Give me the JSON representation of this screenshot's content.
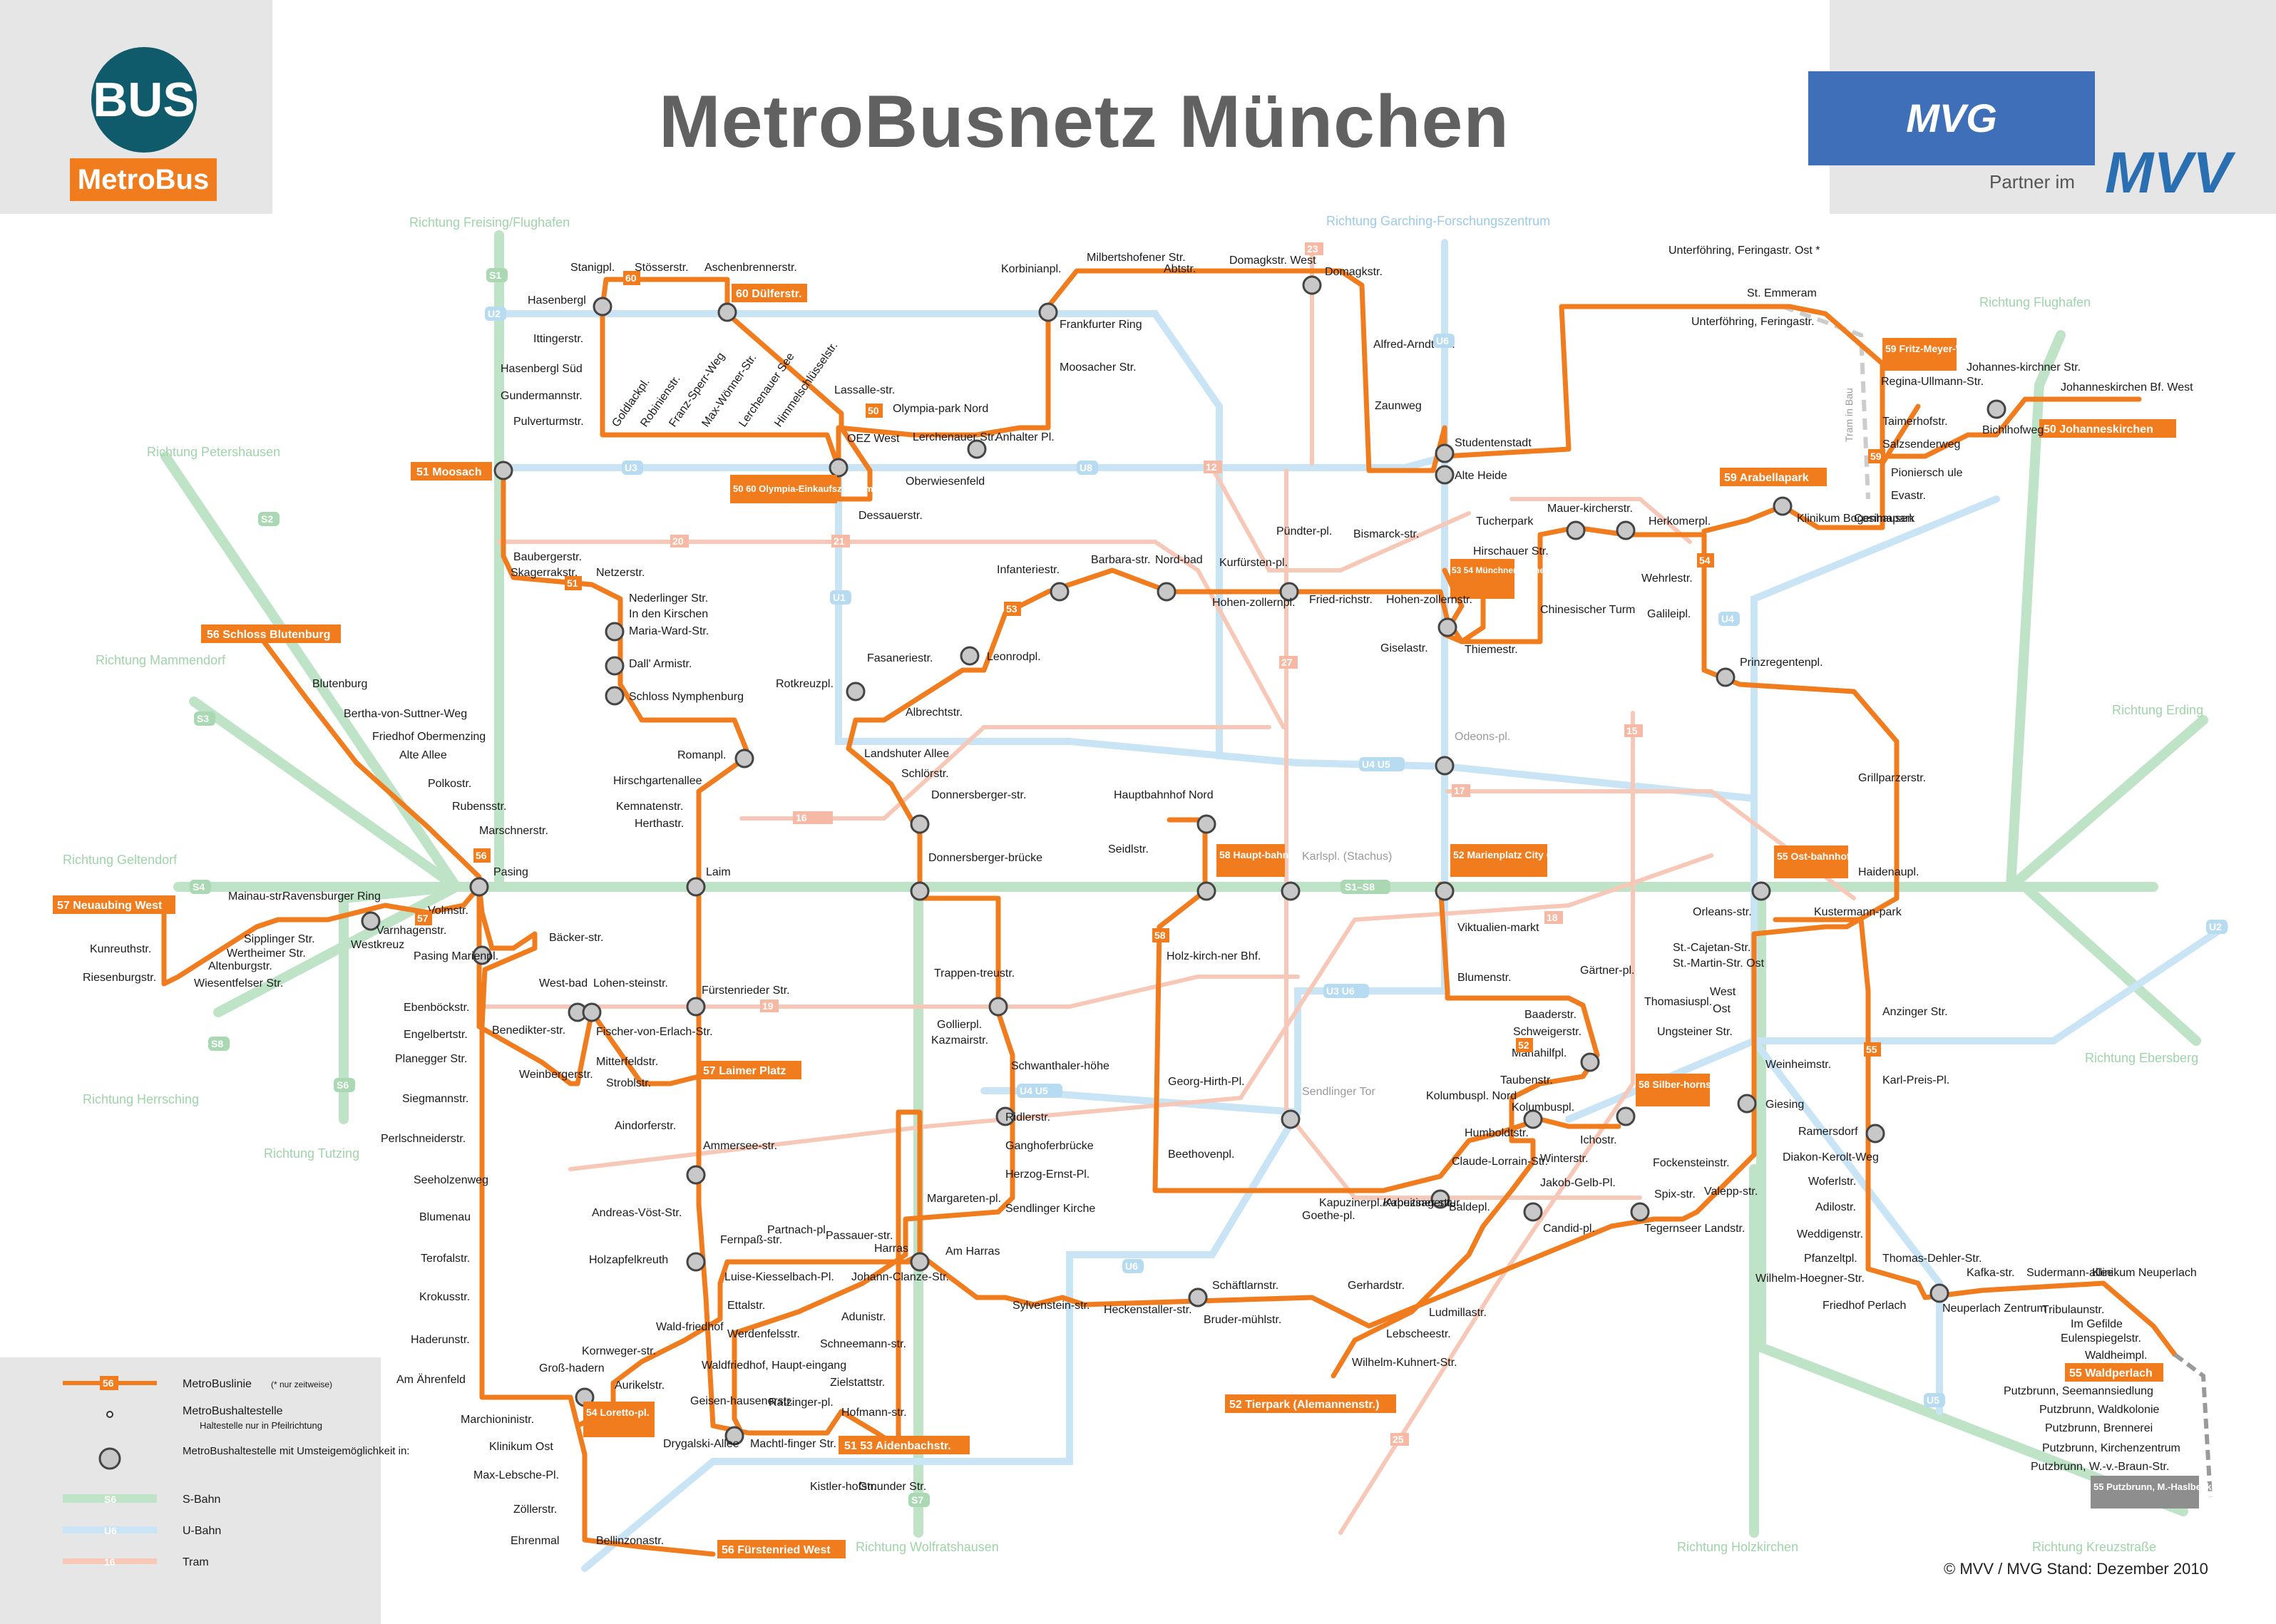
{
  "header": {
    "title": "MetroBusnetz München",
    "logo_bus": "BUS",
    "logo_metrobus": "MetroBus",
    "mvg": "MVG",
    "partner": "Partner im",
    "mvv": "MVV"
  },
  "colors": {
    "metrobus": "#f07c1e",
    "sbahn": "#bfe3c6",
    "ubahn": "#c9e4f5",
    "tram": "#f7c8b8",
    "bus_logo": "#0f5a6b",
    "mvg_blue": "#3f6fb8"
  },
  "directions": [
    "Richtung Freising/Flughafen",
    "Richtung Garching-Forschungszentrum",
    "Richtung Flughafen",
    "Richtung Petershausen",
    "Richtung Mammendorf",
    "Richtung Geltendorf",
    "Richtung Herrsching",
    "Richtung Tutzing",
    "Richtung Wolfratshausen",
    "Richtung Holzkirchen",
    "Richtung Kreuzstraße",
    "Richtung Ebersberg",
    "Richtung Erding"
  ],
  "terminus_labels": [
    "51 Moosach",
    "50 60 Olympia-Einkaufszentrum",
    "60 Dülferstr.",
    "56 Schloss Blutenburg",
    "57 Neuaubing West",
    "57 Laimer Platz",
    "54 Loretto-pl.",
    "56 Fürstenried West",
    "51 53 Aidenbachstr.",
    "52 Tierpark (Alemannenstr.)",
    "58 Haupt-bahnhof",
    "52 Marienplatz City Center",
    "53 54 Münchner Freiheit",
    "59 Arabellapark",
    "59 Fritz-Meyer-Weg",
    "50 Johanneskirchen",
    "55 Ost-bahnhof",
    "58 Silber-hornstr.",
    "55 Waldperlach",
    "55 Putzbrunn, M.-Haslbeck-Str."
  ],
  "stops": [
    "Hasenbergl",
    "Stanigpl.",
    "Stösserstr.",
    "Aschenbrennerstr.",
    "Ittingerstr.",
    "Hasenbergl Süd",
    "Gundermannstr.",
    "Pulverturmstr.",
    "Goldlackpl.",
    "Robinienstr.",
    "Franz-Sperr-Weg",
    "Max-Wönner-Str.",
    "Lerchenauer See",
    "Himmelschlüsselstr.",
    "Lassalle-str.",
    "Olympia-park Nord",
    "OEZ West",
    "Dessauerstr.",
    "Oberwiesenfeld",
    "Lerchenauer Str.",
    "Anhalter Pl.",
    "Korbinianpl.",
    "Milbertshofener Str.",
    "Abtstr.",
    "Domagkstr. West",
    "Domagkstr.",
    "Frankfurter Ring",
    "Moosacher Str.",
    "Alfred-Arndt-Str.",
    "Zaunweg",
    "Studentenstadt",
    "Alte Heide",
    "Unterföhring, Feringastr. Ost *",
    "Unterföhring, Feringastr.",
    "St. Emmeram",
    "Regina-Ullmann-Str.",
    "Taimerhofstr.",
    "Salzsenderweg",
    "Pioniersch ule",
    "Evastr.",
    "Cosimapark",
    "Johannes-kirchner Str.",
    "Bichlhofweg",
    "Johanneskirchen Bf. West",
    "Klinikum Bogenhausen",
    "Baubergerstr.",
    "Skagerrakstr.",
    "Netzerstr.",
    "Nederlinger Str.",
    "In den Kirschen",
    "Maria-Ward-Str.",
    "Dall' Armistr.",
    "Schloss Nymphenburg",
    "Romanpl.",
    "Hirschgartenallee",
    "Kemnatenstr.",
    "Herthastr.",
    "Laim",
    "Blutenburg",
    "Bertha-von-Suttner-Weg",
    "Friedhof Obermenzing",
    "Alte Allee",
    "Polkostr.",
    "Rubensstr.",
    "Marschnerstr.",
    "Pasing",
    "Mainau-str.",
    "Ravensburger Ring",
    "Volmstr.",
    "Varnhagenstr.",
    "Westkreuz",
    "Sipplinger Str.",
    "Wertheimer Str.",
    "Altenburgstr.",
    "Wiesentfelser Str.",
    "Kunreuthstr.",
    "Riesenburgstr.",
    "Pasing Marienpl.",
    "Bäcker-str.",
    "Ebenböckstr.",
    "Engelbertstr.",
    "Planegger Str.",
    "Siegmannstr.",
    "Perlschneiderstr.",
    "Seeholzenweg",
    "Blumenau",
    "Terofalstr.",
    "Krokusstr.",
    "Haderunstr.",
    "Am Ährenfeld",
    "Groß-hadern",
    "Marchioninistr.",
    "Klinikum Ost",
    "Max-Lebsche-Pl.",
    "Zöllerstr.",
    "Ehrenmal",
    "Bellinzonastr.",
    "West-bad",
    "Lohen-steinstr.",
    "Benedikter-str.",
    "Fischer-von-Erlach-Str.",
    "Mitterfeldstr.",
    "Weinbergerstr.",
    "Stroblstr.",
    "Aindorferstr.",
    "Ammersee-str.",
    "Andreas-Vöst-Str.",
    "Holzapfelkreuth",
    "Fernpaß-str.",
    "Partnach-pl.",
    "Passauer-str.",
    "Harras",
    "Am Harras",
    "Luise-Kiesselbach-Pl.",
    "Ettalstr.",
    "Werdenfelsstr.",
    "Johann-Clanze-Str.",
    "Adunistr.",
    "Wald-friedhof",
    "Kornweger-str.",
    "Aurikelstr.",
    "Waldfriedhof, Haupt-eingang",
    "Schneemann-str.",
    "Zielstattstr.",
    "Geisen-hausenerstr.",
    "Ratzinger-pl.",
    "Hofmann-str.",
    "Drygalski-Allee",
    "Machtl-finger Str.",
    "Kistler-hofstr.",
    "Gmunder Str.",
    "Fürstenrieder Str.",
    "Rotkreuzpl.",
    "Fasaneriestr.",
    "Albrechtstr.",
    "Leonrodpl.",
    "Infanteriestr.",
    "Barbara-str.",
    "Nord-bad",
    "Hohen-zollernpl.",
    "Kurfürsten-pl.",
    "Pündter-pl.",
    "Bismarck-str.",
    "Fried-richstr.",
    "Hohen-zollernstr.",
    "Giselastr.",
    "Hirschauer Str.",
    "Chinesischer Turm",
    "Thiemestr.",
    "Tucherpark",
    "Mauer-kircherstr.",
    "Herkomerpl.",
    "Wehrlestr.",
    "Galileipl.",
    "Prinzregentenpl.",
    "Landshuter Allee",
    "Schlörstr.",
    "Donnersberger-str.",
    "Donnersberger-brücke",
    "Hauptbahnhof Nord",
    "Seidlstr.",
    "Karlspl. (Stachus)",
    "Odeons-pl.",
    "Holz-kirch-ner Bhf.",
    "Georg-Hirth-Pl.",
    "Beethovenpl.",
    "Trappen-treustr.",
    "Gollierpl.",
    "Kazmairstr.",
    "Schwanthaler-höhe",
    "Ridlerstr.",
    "Ganghoferbrücke",
    "Herzog-Ernst-Pl.",
    "Sendlinger Kirche",
    "Margareten-pl.",
    "Sylvenstein-str.",
    "Heckenstaller-str.",
    "Schäftlarnstr.",
    "Bruder-mühlstr.",
    "Gerhardstr.",
    "Ludmillastr.",
    "Lebscheestr.",
    "Wilhelm-Kuhnert-Str.",
    "Kapuzinerpl./Arbeitsagentur",
    "Kapuziner-str.",
    "Goethe-pl.",
    "Sendlinger Tor",
    "Viktualien-markt",
    "Blumenstr.",
    "Gärtner-pl.",
    "Baaderstr.",
    "Schweigerstr.",
    "Mariahilfpl.",
    "Taubenstr.",
    "Kolumbuspl. Nord",
    "Kolumbuspl.",
    "Humboldtstr.",
    "Claude-Lorrain-Str.",
    "Baldepl.",
    "Ichostr.",
    "Winterstr.",
    "Jakob-Gelb-Pl.",
    "Candid-pl.",
    "Tegernseer Landstr.",
    "Spix-str.",
    "Valepp-str.",
    "Fockensteinstr.",
    "Orleans-str.",
    "St.-Cajetan-Str.",
    "St.-Martin-Str. Ost",
    "West",
    "Ost",
    "Thomasiuspl.",
    "Ungsteiner Str.",
    "Weinheimstr.",
    "Giesing",
    "Kustermann-park",
    "Anzinger Str.",
    "Karl-Preis-Pl.",
    "Ramersdorf",
    "Diakon-Kerolt-Weg",
    "Woferlstr.",
    "Adilostr.",
    "Weddigenstr.",
    "Pfanzeltpl.",
    "Wilhelm-Hoegner-Str.",
    "Friedhof Perlach",
    "Thomas-Dehler-Str.",
    "Neuperlach Zentrum",
    "Kafka-str.",
    "Sudermann-allee",
    "Klinikum Neuperlach",
    "Tribulaunstr.",
    "Im Gefilde",
    "Eulenspiegelstr.",
    "Waldheimpl.",
    "Putzbrunn, Seemannsiedlung",
    "Putzbrunn, Waldkolonie",
    "Putzbrunn, Brennerei",
    "Putzbrunn, Kirchenzentrum",
    "Putzbrunn, W.-v.-Braun-Str.",
    "Grillparzerstr.",
    "Haidenaupl."
  ],
  "line_numbers": [
    "50",
    "51",
    "52",
    "53",
    "54",
    "55",
    "56",
    "57",
    "58",
    "59",
    "60"
  ],
  "rail_labels": {
    "sbahn": [
      "S1",
      "S2",
      "S3",
      "S4",
      "S6",
      "S7",
      "S8",
      "S1–S8"
    ],
    "ubahn": [
      "U1",
      "U2",
      "U3",
      "U4",
      "U5",
      "U6",
      "U7",
      "U8",
      "U4 U5",
      "U3 U6"
    ],
    "tram": [
      "12",
      "15",
      "16",
      "17",
      "18",
      "19",
      "20",
      "21",
      "23",
      "25",
      "27"
    ]
  },
  "tram_in_bau": "Tram in Bau",
  "legend": {
    "line_sample": "56",
    "metrobus_line": "MetroBuslinie",
    "metrobus_line_note": "(* nur zeitweise)",
    "stop": "MetroBushaltestelle",
    "stop_note": "Haltestelle nur in Pfeilrichtung",
    "transfer_stop": "MetroBushaltestelle mit Umsteigemöglichkeit in:",
    "sbahn_sample": "S6",
    "sbahn": "S-Bahn",
    "ubahn_sample": "U6",
    "ubahn": "U-Bahn",
    "tram_sample": "16",
    "tram": "Tram"
  },
  "footer": {
    "copyright": "© MVV / MVG Stand: Dezember 2010"
  }
}
